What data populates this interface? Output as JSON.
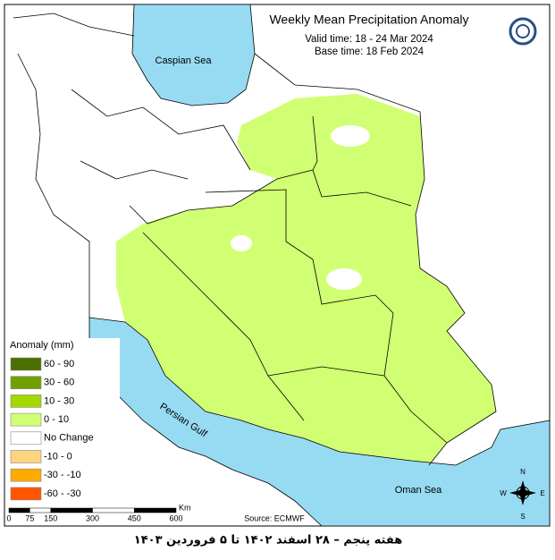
{
  "header": {
    "title": "Weekly Mean Precipitation Anomaly",
    "valid_time": "Valid time:  18 - 24 Mar 2024",
    "base_time": "Base time: 18 Feb 2024"
  },
  "labels": {
    "caspian": "Caspian Sea",
    "gulf": "Persian Gulf",
    "oman": "Oman Sea"
  },
  "legend": {
    "title": "Anomaly (mm)",
    "items": [
      {
        "label": "60 - 90",
        "color": "#4c7000"
      },
      {
        "label": "30 - 60",
        "color": "#70a000"
      },
      {
        "label": "10 - 30",
        "color": "#a3d900"
      },
      {
        "label": "0 - 10",
        "color": "#d1ff73"
      },
      {
        "label": "No Change",
        "color": "#ffffff"
      },
      {
        "label": "-10 - 0",
        "color": "#ffd37f"
      },
      {
        "label": "-30 - -10",
        "color": "#ffaa00"
      },
      {
        "label": "-60 - -30",
        "color": "#ff5500"
      }
    ]
  },
  "scale": {
    "ticks": [
      0,
      75,
      150,
      300,
      450,
      600
    ],
    "unit": "Km"
  },
  "compass": {
    "n": "N",
    "e": "E",
    "s": "S",
    "w": "W"
  },
  "source": "Source: ECMWF",
  "caption": "هفته پنجم – ۲۸ اسفند ۱۴۰۲ تا ۵ فروردین ۱۴۰۳"
}
